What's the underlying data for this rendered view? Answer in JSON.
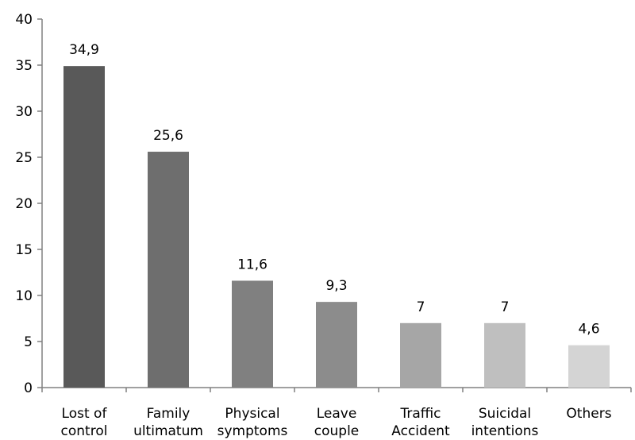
{
  "chart_data": {
    "type": "bar",
    "categories": [
      [
        "Lost of",
        "control"
      ],
      [
        "Family",
        "ultimatum"
      ],
      [
        "Physical",
        "symptoms"
      ],
      [
        "Leave",
        "couple"
      ],
      [
        "Traffic",
        "Accident"
      ],
      [
        "Suicidal",
        "intentions"
      ],
      [
        "Others"
      ]
    ],
    "values": [
      34.9,
      25.6,
      11.6,
      9.3,
      7,
      7,
      4.6
    ],
    "data_labels": [
      "34,9",
      "25,6",
      "11,6",
      "9,3",
      "7",
      "7",
      "4,6"
    ],
    "bar_colors": [
      "#595959",
      "#6e6e6e",
      "#808080",
      "#8c8c8c",
      "#a6a6a6",
      "#bfbfbf",
      "#d4d4d4"
    ],
    "y_ticks": [
      0,
      5,
      10,
      15,
      20,
      25,
      30,
      35,
      40
    ],
    "ylim": [
      0,
      40
    ],
    "grid": false,
    "legend": "none",
    "title": "",
    "xlabel": "",
    "ylabel": ""
  }
}
